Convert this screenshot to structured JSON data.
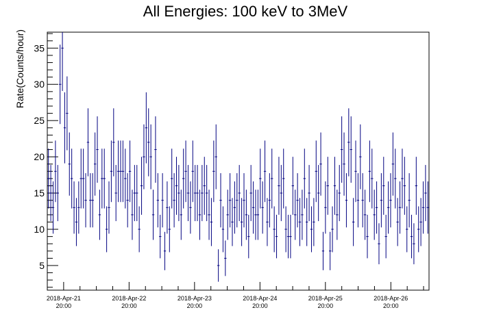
{
  "chart_data": {
    "type": "scatter",
    "title": "All Energies:  100 keV to 3MeV",
    "xlabel": "",
    "ylabel": "Rate(Counts/hour)",
    "x_unit": "hours",
    "xlim": [
      0,
      140
    ],
    "ylim": [
      1.6,
      37.2
    ],
    "grid": false,
    "legend": "none",
    "y_ticks": [
      5,
      10,
      15,
      20,
      25,
      30,
      35
    ],
    "x_tick_labels": [
      {
        "date": "2018-Apr-21",
        "time": "20:00",
        "x": 6
      },
      {
        "date": "2018-Apr-22",
        "time": "20:00",
        "x": 30
      },
      {
        "date": "2018-Apr-23",
        "time": "20:00",
        "x": 54
      },
      {
        "date": "2018-Apr-24",
        "time": "20:00",
        "x": 78
      },
      {
        "date": "2018-Apr-25",
        "time": "20:00",
        "x": 102
      },
      {
        "date": "2018-Apr-26",
        "time": "20:00",
        "x": 126
      }
    ],
    "series": [
      {
        "color": "#000080",
        "values": [
          17,
          15,
          13,
          18,
          15,
          30,
          35,
          24,
          26,
          19,
          17,
          13,
          11,
          13,
          17,
          17,
          14,
          22,
          14,
          14,
          19,
          21,
          12,
          17,
          17,
          10,
          13,
          18,
          22,
          15,
          18,
          18,
          18,
          17,
          14,
          18,
          12,
          15,
          15,
          10,
          16,
          20,
          24,
          22,
          20,
          12,
          21,
          14,
          9,
          14,
          7,
          13,
          10,
          17,
          14,
          16,
          15,
          12,
          17,
          18,
          15,
          13,
          18,
          15,
          15,
          12,
          15,
          16,
          15,
          12,
          11,
          18,
          20,
          5,
          14,
          10,
          6,
          12,
          14,
          11,
          13,
          14,
          15,
          11,
          14,
          12,
          9,
          15,
          13,
          12,
          12,
          17,
          13,
          18,
          11,
          14,
          17,
          10,
          9,
          16,
          15,
          17,
          10,
          9,
          9,
          16,
          12,
          14,
          11,
          12,
          17,
          11,
          15,
          10,
          11,
          18,
          15,
          19,
          7,
          13,
          16,
          7,
          10,
          16,
          12,
          15,
          21,
          19,
          14,
          22,
          21,
          11,
          18,
          14,
          20,
          14,
          12,
          9,
          18,
          17,
          12,
          13,
          8,
          14,
          16,
          9,
          13,
          14,
          19,
          17,
          11,
          13,
          17,
          16,
          10,
          14,
          9,
          8,
          16,
          10,
          11,
          13,
          15,
          13
        ]
      }
    ]
  }
}
